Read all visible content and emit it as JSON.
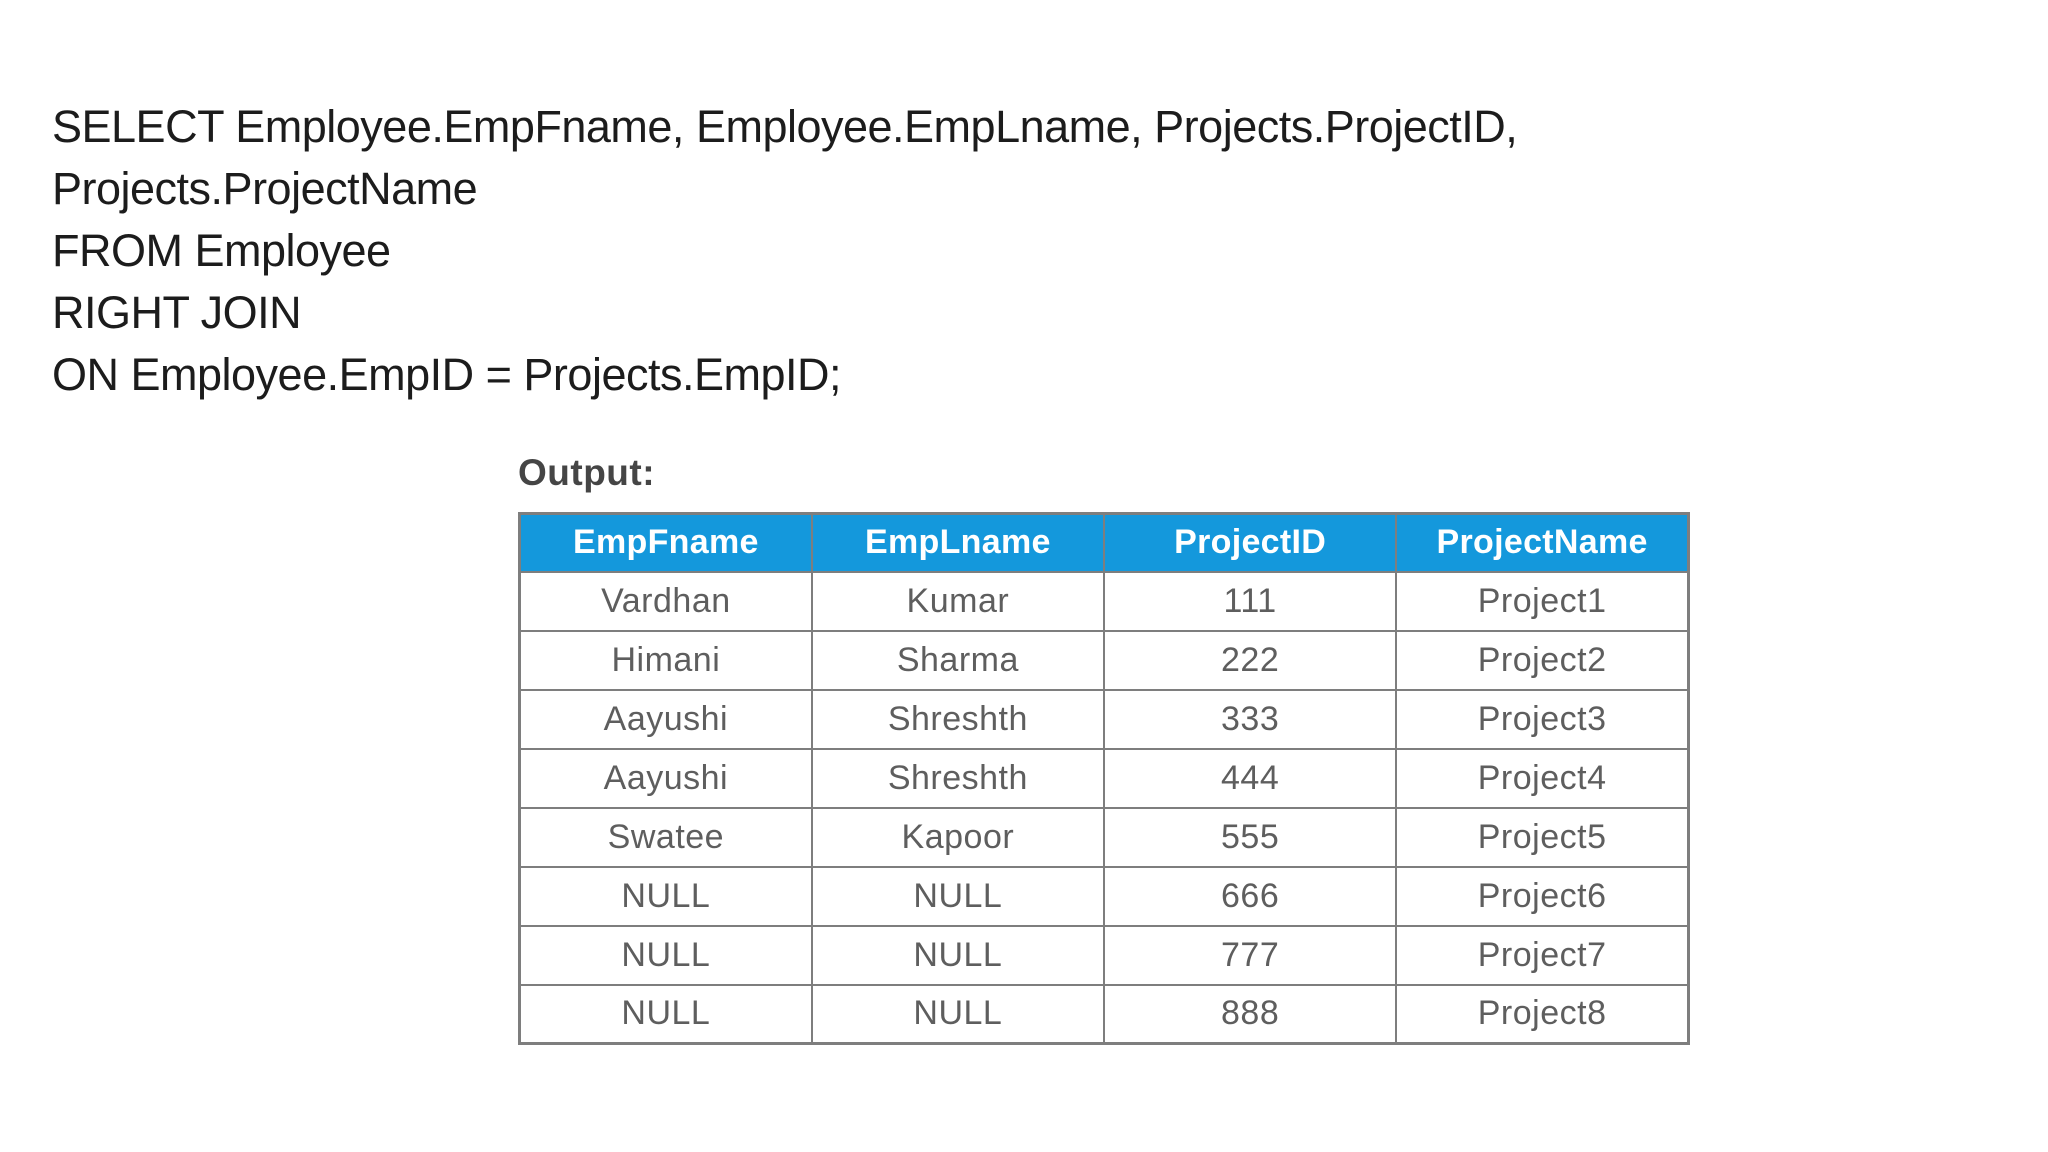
{
  "sql_query": {
    "lines": [
      "SELECT Employee.EmpFname, Employee.EmpLname, Projects.ProjectID,",
      "Projects.ProjectName",
      "FROM Employee",
      "RIGHT JOIN",
      "ON Employee.EmpID = Projects.EmpID;"
    ]
  },
  "output": {
    "label": "Output:",
    "table": {
      "headers": [
        "EmpFname",
        "EmpLname",
        "ProjectID",
        "ProjectName"
      ],
      "rows": [
        [
          "Vardhan",
          "Kumar",
          "111",
          "Project1"
        ],
        [
          "Himani",
          "Sharma",
          "222",
          "Project2"
        ],
        [
          "Aayushi",
          "Shreshth",
          "333",
          "Project3"
        ],
        [
          "Aayushi",
          "Shreshth",
          "444",
          "Project4"
        ],
        [
          "Swatee",
          "Kapoor",
          "555",
          "Project5"
        ],
        [
          "NULL",
          "NULL",
          "666",
          "Project6"
        ],
        [
          "NULL",
          "NULL",
          "777",
          "Project7"
        ],
        [
          "NULL",
          "NULL",
          "888",
          "Project8"
        ]
      ]
    }
  },
  "colors": {
    "header_bg": "#1498dc",
    "header_text": "#ffffff",
    "cell_text": "#5e5e5e",
    "border": "#7e7e7e",
    "sql_text": "#1c1c1c",
    "output_label": "#454545"
  }
}
